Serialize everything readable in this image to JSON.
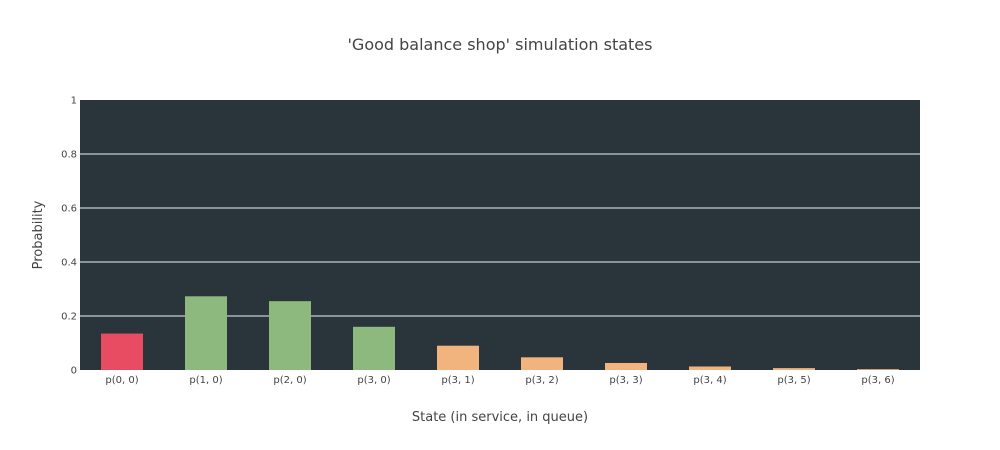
{
  "chart_data": {
    "type": "bar",
    "title": "'Good balance shop' simulation states",
    "xlabel": "State (in service, in queue)",
    "ylabel": "Probability",
    "ylim": [
      0,
      1
    ],
    "y_ticks": [
      "0",
      "0.2",
      "0.4",
      "0.6",
      "0.8",
      "1"
    ],
    "grid": true,
    "plot_background": "#2a343b",
    "grid_color": "#a9b3b8",
    "categories": [
      "p(0, 0)",
      "p(1, 0)",
      "p(2, 0)",
      "p(3, 0)",
      "p(3, 1)",
      "p(3, 2)",
      "p(3, 3)",
      "p(3, 4)",
      "p(3, 5)",
      "p(3, 6)"
    ],
    "values": [
      0.135,
      0.273,
      0.255,
      0.16,
      0.09,
      0.047,
      0.026,
      0.013,
      0.007,
      0.003
    ],
    "colors": [
      "#e74c63",
      "#8db87e",
      "#8db87e",
      "#8db87e",
      "#f2b47f",
      "#f2b47f",
      "#f2b47f",
      "#f2b47f",
      "#f2b47f",
      "#f2b47f"
    ]
  }
}
